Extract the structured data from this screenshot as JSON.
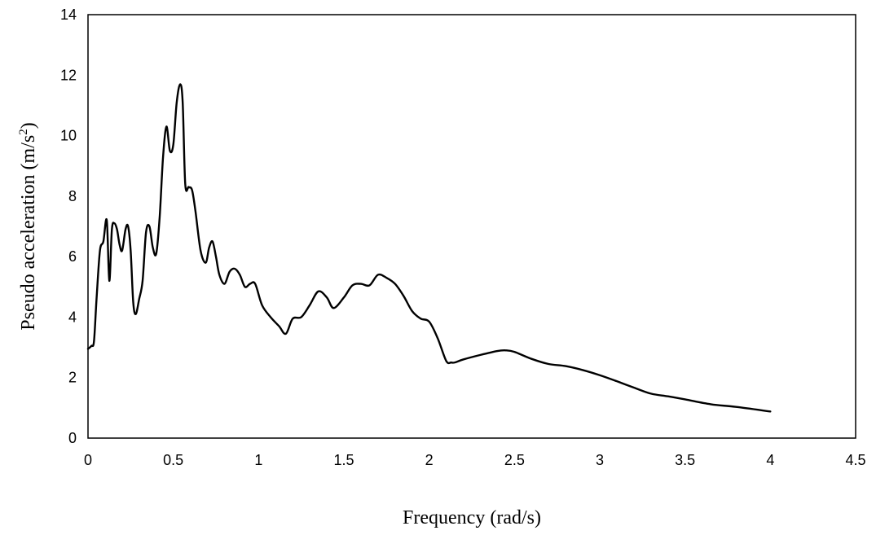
{
  "chart_data": {
    "type": "line",
    "xlabel": "Frequency (rad/s)",
    "ylabel_main": "Pseudo acceleration (m/s",
    "ylabel_sup": "2",
    "ylabel_close": ")",
    "xlim": [
      0,
      4.5
    ],
    "ylim": [
      0,
      14
    ],
    "xticks": [
      "0",
      "0.5",
      "1",
      "1.5",
      "2",
      "2.5",
      "3",
      "3.5",
      "4",
      "4.5"
    ],
    "yticks": [
      "0",
      "2",
      "4",
      "6",
      "8",
      "10",
      "12",
      "14"
    ],
    "grid": false,
    "legend": "none",
    "series": [
      {
        "color": "#000000",
        "x": [
          0,
          0.02,
          0.035,
          0.05,
          0.07,
          0.09,
          0.11,
          0.125,
          0.14,
          0.155,
          0.17,
          0.185,
          0.2,
          0.22,
          0.235,
          0.25,
          0.265,
          0.28,
          0.3,
          0.32,
          0.34,
          0.36,
          0.38,
          0.4,
          0.42,
          0.44,
          0.46,
          0.48,
          0.5,
          0.52,
          0.54,
          0.555,
          0.57,
          0.59,
          0.61,
          0.63,
          0.66,
          0.69,
          0.71,
          0.73,
          0.75,
          0.77,
          0.8,
          0.83,
          0.86,
          0.89,
          0.92,
          0.95,
          0.98,
          1.02,
          1.07,
          1.12,
          1.16,
          1.2,
          1.25,
          1.3,
          1.35,
          1.4,
          1.44,
          1.5,
          1.55,
          1.6,
          1.65,
          1.7,
          1.75,
          1.8,
          1.85,
          1.9,
          1.95,
          2.0,
          2.05,
          2.1,
          2.13,
          2.15,
          2.2,
          2.3,
          2.4,
          2.45,
          2.5,
          2.6,
          2.7,
          2.8,
          2.9,
          3.0,
          3.1,
          3.2,
          3.3,
          3.4,
          3.5,
          3.65,
          3.8,
          4.0
        ],
        "y": [
          2.95,
          3.05,
          3.2,
          4.6,
          6.2,
          6.5,
          7.2,
          5.2,
          6.9,
          7.1,
          6.9,
          6.4,
          6.2,
          6.9,
          7.0,
          6.2,
          4.5,
          4.1,
          4.6,
          5.2,
          6.8,
          7.0,
          6.3,
          6.1,
          7.3,
          9.3,
          10.3,
          9.5,
          9.7,
          11.1,
          11.7,
          11.1,
          8.4,
          8.3,
          8.2,
          7.5,
          6.2,
          5.8,
          6.3,
          6.5,
          6.0,
          5.4,
          5.1,
          5.5,
          5.6,
          5.4,
          5.0,
          5.1,
          5.1,
          4.4,
          4.0,
          3.7,
          3.45,
          3.95,
          4.0,
          4.4,
          4.85,
          4.65,
          4.3,
          4.65,
          5.05,
          5.1,
          5.05,
          5.4,
          5.3,
          5.1,
          4.7,
          4.2,
          3.95,
          3.85,
          3.3,
          2.55,
          2.5,
          2.5,
          2.6,
          2.75,
          2.88,
          2.9,
          2.85,
          2.62,
          2.45,
          2.38,
          2.25,
          2.08,
          1.88,
          1.67,
          1.47,
          1.38,
          1.28,
          1.12,
          1.03,
          0.88
        ]
      }
    ]
  }
}
